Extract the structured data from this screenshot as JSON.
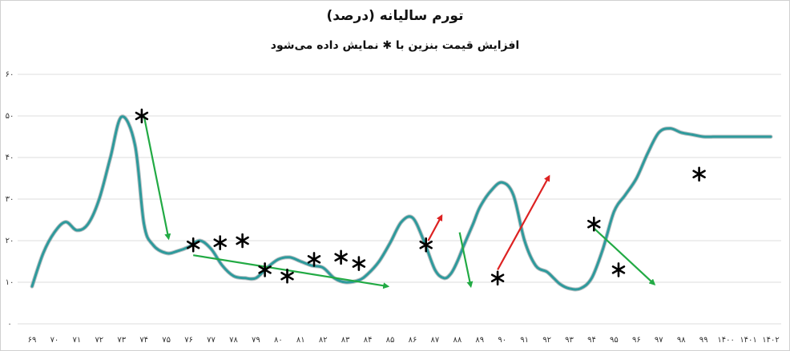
{
  "chart_data": {
    "type": "line",
    "title": "تورم سالیانه (درصد)",
    "subtitle": "افزایش قیمت بنزین با ✱ نمایش داده می‌شود",
    "ylim": [
      0,
      60
    ],
    "y_ticks": [
      "۰",
      "۱۰",
      "۲۰",
      "۳۰",
      "۴۰",
      "۵۰",
      "۶۰"
    ],
    "y_tick_values": [
      0,
      10,
      20,
      30,
      40,
      50,
      60
    ],
    "grid": true,
    "categories": [
      "۶۹",
      "۷۰",
      "۷۱",
      "۷۲",
      "۷۳",
      "۷۴",
      "۷۵",
      "۷۶",
      "۷۷",
      "۷۸",
      "۷۹",
      "۸۰",
      "۸۱",
      "۸۲",
      "۸۳",
      "۸۴",
      "۸۵",
      "۸۶",
      "۸۷",
      "۸۸",
      "۸۹",
      "۹۰",
      "۹۱",
      "۹۲",
      "۹۳",
      "۹۴",
      "۹۵",
      "۹۶",
      "۹۷",
      "۹۸",
      "۹۹",
      "۱۴۰۰",
      "۱۴۰۱",
      "۱۴۰۲"
    ],
    "series": [
      {
        "color": "#2e9a9c",
        "x": [
          0,
          0.5,
          1.0,
          1.5,
          2.0,
          2.5,
          3.0,
          3.5,
          4.0,
          4.6,
          5.0,
          5.4,
          6.0,
          6.5,
          7.0,
          7.5,
          8.0,
          8.5,
          9.0,
          9.5,
          10.0,
          10.5,
          11.0,
          11.5,
          12.0,
          12.5,
          13.0,
          13.5,
          14.0,
          14.6,
          15.0,
          15.5,
          16.0,
          16.5,
          17.0,
          17.5,
          18.0,
          18.4,
          18.7,
          19.0,
          19.3,
          19.7,
          20.0,
          20.5,
          21.0,
          21.5,
          22.0,
          22.5,
          23.0,
          23.3,
          23.6,
          24.0,
          24.5,
          25.0,
          25.5,
          26.0,
          26.5,
          27.0,
          27.5,
          28.0,
          28.5,
          29.0,
          29.5,
          30.0,
          30.5,
          31.0,
          32.0,
          33.0
        ],
        "values": [
          9,
          17,
          22,
          24.5,
          22.5,
          24,
          30,
          40,
          49.8,
          43,
          24,
          19,
          17,
          17.5,
          18.5,
          20,
          18,
          14,
          11.5,
          11,
          11,
          13.5,
          15.5,
          16,
          15,
          14,
          13.5,
          11,
          10,
          10.5,
          12,
          15,
          19.5,
          24.5,
          25.5,
          20,
          13,
          11,
          12,
          15,
          19,
          24,
          28,
          32,
          34,
          31,
          20,
          14,
          12.5,
          11,
          9.5,
          8.5,
          8.5,
          11,
          18,
          27,
          31,
          35,
          41,
          46,
          47,
          46,
          45.5,
          45,
          45,
          45,
          45,
          45
        ]
      }
    ],
    "gas_price_increase_markers": [
      {
        "x": 4.9,
        "y": 50
      },
      {
        "x": 7.2,
        "y": 19
      },
      {
        "x": 8.4,
        "y": 19.5
      },
      {
        "x": 9.4,
        "y": 20
      },
      {
        "x": 10.4,
        "y": 13
      },
      {
        "x": 11.4,
        "y": 11.5
      },
      {
        "x": 12.6,
        "y": 15.5
      },
      {
        "x": 13.8,
        "y": 16
      },
      {
        "x": 14.6,
        "y": 14.5
      },
      {
        "x": 17.6,
        "y": 19
      },
      {
        "x": 20.8,
        "y": 11
      },
      {
        "x": 25.1,
        "y": 24
      },
      {
        "x": 26.2,
        "y": 13
      },
      {
        "x": 29.8,
        "y": 36
      }
    ],
    "arrows": [
      {
        "color": "#22aa44",
        "from": {
          "x": 5.0,
          "y": 50
        },
        "to": {
          "x": 6.1,
          "y": 20.5
        }
      },
      {
        "color": "#22aa44",
        "from": {
          "x": 7.2,
          "y": 16.5
        },
        "to": {
          "x": 15.9,
          "y": 9
        }
      },
      {
        "color": "#dd2222",
        "from": {
          "x": 17.7,
          "y": 20
        },
        "to": {
          "x": 18.3,
          "y": 26
        }
      },
      {
        "color": "#22aa44",
        "from": {
          "x": 19.1,
          "y": 22
        },
        "to": {
          "x": 19.6,
          "y": 9
        }
      },
      {
        "color": "#dd2222",
        "from": {
          "x": 20.8,
          "y": 13
        },
        "to": {
          "x": 23.1,
          "y": 35.5
        }
      },
      {
        "color": "#22aa44",
        "from": {
          "x": 25.1,
          "y": 23
        },
        "to": {
          "x": 27.8,
          "y": 9.5
        }
      }
    ]
  }
}
